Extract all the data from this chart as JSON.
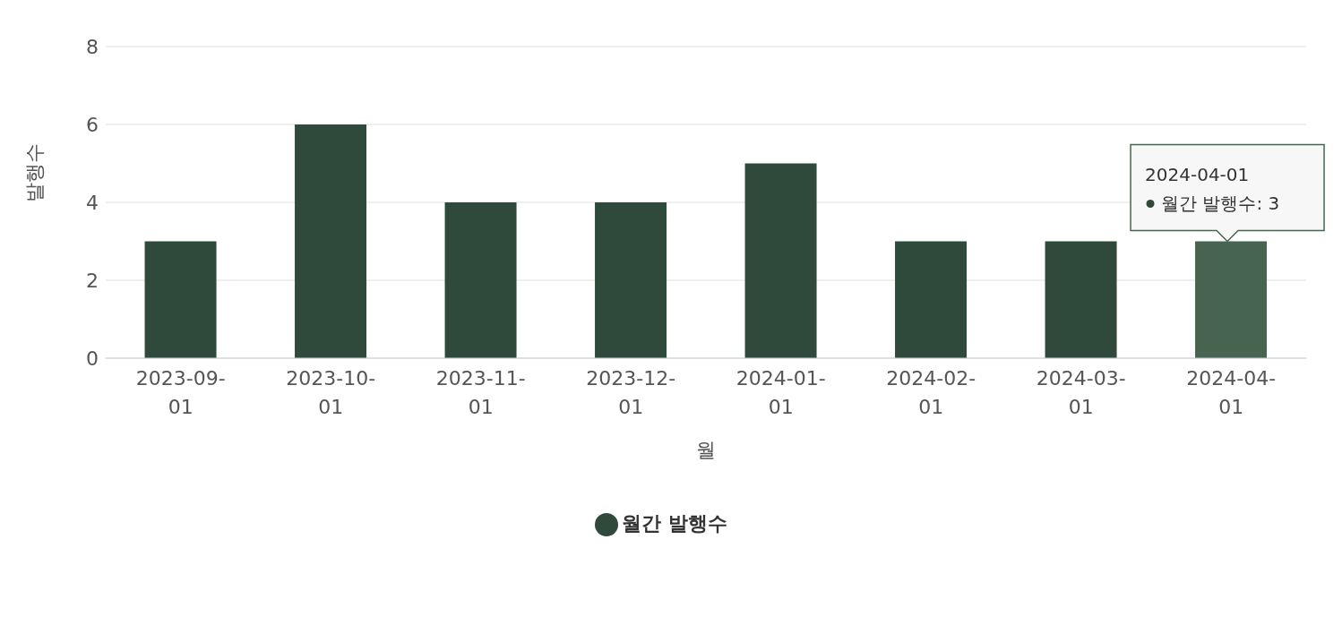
{
  "chart_data": {
    "type": "bar",
    "xlabel": "월",
    "ylabel": "발행수",
    "categories": [
      "2023-09-01",
      "2023-10-01",
      "2023-11-01",
      "2023-12-01",
      "2024-01-01",
      "2024-02-01",
      "2024-03-01",
      "2024-04-01"
    ],
    "series": [
      {
        "name": "월간 발행수",
        "color": "#2f4a3a",
        "colors": [
          "#2f4a3a",
          "#2f4a3a",
          "#2f4a3a",
          "#2f4a3a",
          "#2f4a3a",
          "#2f4a3a",
          "#2f4a3a",
          "#466450"
        ],
        "values": [
          3,
          6,
          4,
          4,
          5,
          3,
          3,
          3
        ]
      }
    ],
    "ylim": [
      0,
      8
    ],
    "yticks": [
      0,
      2,
      4,
      6,
      8
    ],
    "grid": "y",
    "legend": "bottom",
    "annotations": [
      "2024-04-01",
      "월간 발행수: 3"
    ]
  }
}
